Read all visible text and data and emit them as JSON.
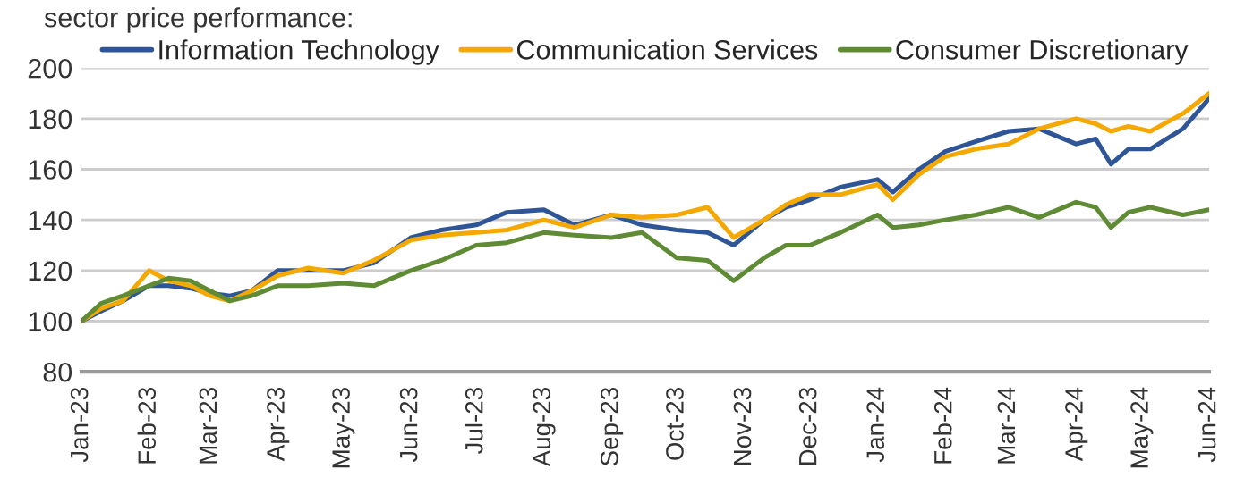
{
  "chart_data": {
    "type": "line",
    "title": "sector price performance:",
    "x": [
      "2023-01-01",
      "2023-01-10",
      "2023-01-20",
      "2023-02-01",
      "2023-02-10",
      "2023-02-20",
      "2023-03-01",
      "2023-03-10",
      "2023-03-20",
      "2023-04-01",
      "2023-04-15",
      "2023-05-01",
      "2023-05-15",
      "2023-06-01",
      "2023-06-15",
      "2023-07-01",
      "2023-07-15",
      "2023-08-01",
      "2023-08-15",
      "2023-09-01",
      "2023-09-15",
      "2023-10-01",
      "2023-10-15",
      "2023-10-27",
      "2023-11-10",
      "2023-11-20",
      "2023-12-01",
      "2023-12-15",
      "2024-01-01",
      "2024-01-08",
      "2024-01-20",
      "2024-02-01",
      "2024-02-15",
      "2024-03-01",
      "2024-03-15",
      "2024-04-01",
      "2024-04-10",
      "2024-04-17",
      "2024-04-25",
      "2024-05-05",
      "2024-05-20",
      "2024-06-01"
    ],
    "series": [
      {
        "name": "Information Technology",
        "color": "#2e5597",
        "values": [
          100,
          104,
          108,
          114,
          114,
          113,
          111,
          110,
          112,
          120,
          120,
          120,
          123,
          133,
          136,
          138,
          143,
          144,
          138,
          142,
          138,
          136,
          135,
          130,
          140,
          145,
          148,
          153,
          156,
          151,
          160,
          167,
          171,
          175,
          176,
          170,
          172,
          162,
          168,
          168,
          176,
          188
        ]
      },
      {
        "name": "Communication Services",
        "color": "#f5a800",
        "values": [
          100,
          105,
          108,
          120,
          116,
          114,
          110,
          108,
          112,
          118,
          121,
          119,
          124,
          132,
          134,
          135,
          136,
          140,
          137,
          142,
          141,
          142,
          145,
          133,
          140,
          146,
          150,
          150,
          154,
          148,
          158,
          165,
          168,
          170,
          176,
          180,
          178,
          175,
          177,
          175,
          182,
          190
        ]
      },
      {
        "name": "Consumer Discretionary",
        "color": "#5e8b33",
        "values": [
          100,
          107,
          110,
          114,
          117,
          116,
          112,
          108,
          110,
          114,
          114,
          115,
          114,
          120,
          124,
          130,
          131,
          135,
          134,
          133,
          135,
          125,
          124,
          116,
          125,
          130,
          130,
          135,
          142,
          137,
          138,
          140,
          142,
          145,
          141,
          147,
          145,
          137,
          143,
          145,
          142,
          144
        ]
      }
    ],
    "xlim": [
      "2023-01-01",
      "2024-06-01"
    ],
    "xticks": [
      {
        "value": "2023-01-01",
        "label": "Jan-23"
      },
      {
        "value": "2023-02-01",
        "label": "Feb-23"
      },
      {
        "value": "2023-03-01",
        "label": "Mar-23"
      },
      {
        "value": "2023-04-01",
        "label": "Apr-23"
      },
      {
        "value": "2023-05-01",
        "label": "May-23"
      },
      {
        "value": "2023-06-01",
        "label": "Jun-23"
      },
      {
        "value": "2023-07-01",
        "label": "Jul-23"
      },
      {
        "value": "2023-08-01",
        "label": "Aug-23"
      },
      {
        "value": "2023-09-01",
        "label": "Sep-23"
      },
      {
        "value": "2023-10-01",
        "label": "Oct-23"
      },
      {
        "value": "2023-11-01",
        "label": "Nov-23"
      },
      {
        "value": "2023-12-01",
        "label": "Dec-23"
      },
      {
        "value": "2024-01-01",
        "label": "Jan-24"
      },
      {
        "value": "2024-02-01",
        "label": "Feb-24"
      },
      {
        "value": "2024-03-01",
        "label": "Mar-24"
      },
      {
        "value": "2024-04-01",
        "label": "Apr-24"
      },
      {
        "value": "2024-05-01",
        "label": "May-24"
      },
      {
        "value": "2024-06-01",
        "label": "Jun-24"
      }
    ],
    "ylim": [
      80,
      200
    ],
    "yticks": [
      80,
      100,
      120,
      140,
      160,
      180,
      200
    ],
    "grid": "y",
    "legend": "top"
  }
}
